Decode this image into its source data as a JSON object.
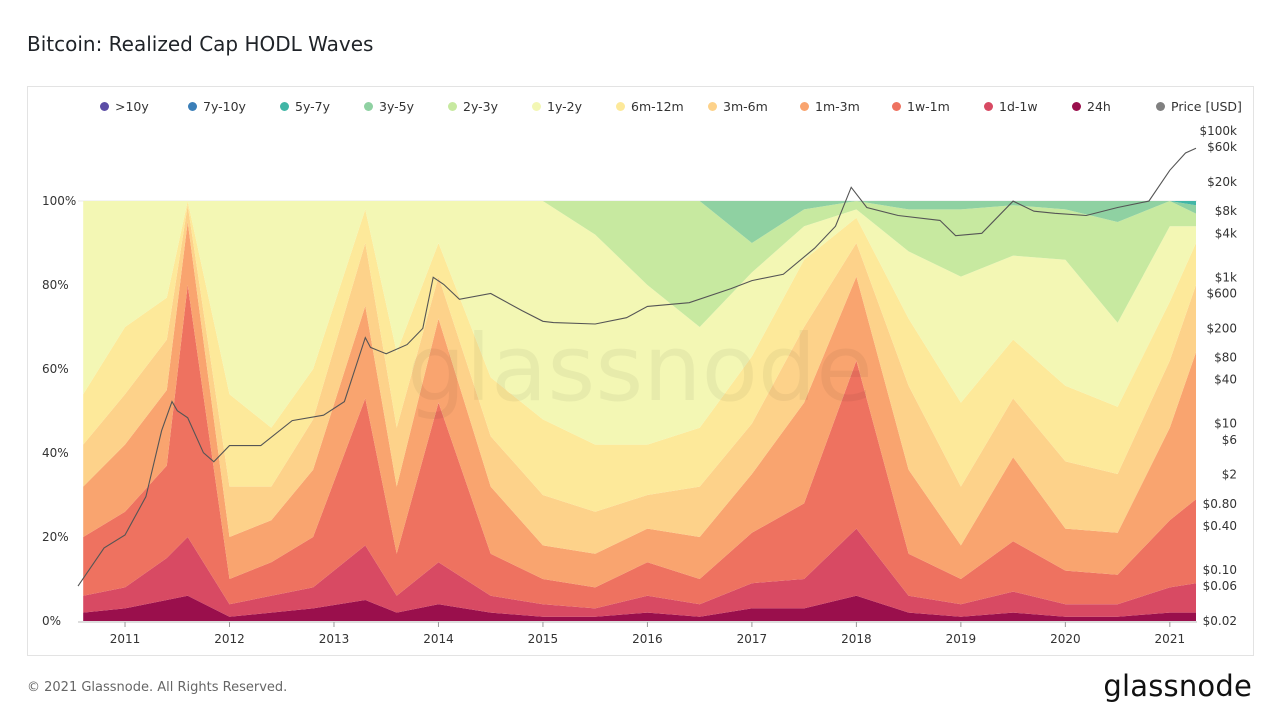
{
  "title": "Bitcoin: Realized Cap HODL Waves",
  "footer": "© 2021 Glassnode. All Rights Reserved.",
  "brand": "glassnode",
  "watermark": "glassnode",
  "legend": [
    {
      "label": ">10y",
      "color": "#5c4ea6"
    },
    {
      "label": "7y-10y",
      "color": "#3b7fb8"
    },
    {
      "label": "5y-7y",
      "color": "#41b6a6"
    },
    {
      "label": "3y-5y",
      "color": "#8fd1a2"
    },
    {
      "label": "2y-3y",
      "color": "#c7e9a0"
    },
    {
      "label": "1y-2y",
      "color": "#f3f7b4"
    },
    {
      "label": "6m-12m",
      "color": "#fde99a"
    },
    {
      "label": "3m-6m",
      "color": "#fdd28a"
    },
    {
      "label": "1m-3m",
      "color": "#f9a46f"
    },
    {
      "label": "1w-1m",
      "color": "#ee7260"
    },
    {
      "label": "1d-1w",
      "color": "#d84a63"
    },
    {
      "label": "24h",
      "color": "#9a0f4c"
    },
    {
      "label": "Price [USD]",
      "color": "#808080"
    }
  ],
  "chart_data": {
    "type": "area",
    "stacked": true,
    "normalized_percent": true,
    "x": [
      2010.6,
      2011.0,
      2011.4,
      2011.6,
      2012.0,
      2012.4,
      2012.8,
      2013.3,
      2013.6,
      2014.0,
      2014.5,
      2015.0,
      2015.5,
      2016.0,
      2016.5,
      2017.0,
      2017.5,
      2018.0,
      2018.5,
      2019.0,
      2019.5,
      2020.0,
      2020.5,
      2021.0,
      2021.25
    ],
    "series": [
      {
        "name": "24h",
        "values": [
          2,
          3,
          5,
          6,
          1,
          2,
          3,
          5,
          2,
          4,
          2,
          1,
          1,
          2,
          1,
          3,
          3,
          6,
          2,
          1,
          2,
          1,
          1,
          2,
          2
        ]
      },
      {
        "name": "1d-1w",
        "values": [
          4,
          5,
          10,
          14,
          3,
          4,
          5,
          13,
          4,
          10,
          4,
          3,
          2,
          4,
          3,
          6,
          7,
          16,
          4,
          3,
          5,
          3,
          3,
          6,
          7
        ]
      },
      {
        "name": "1w-1m",
        "values": [
          14,
          18,
          22,
          60,
          6,
          8,
          12,
          35,
          10,
          38,
          10,
          6,
          5,
          8,
          6,
          12,
          18,
          40,
          10,
          6,
          12,
          8,
          7,
          16,
          20
        ]
      },
      {
        "name": "1m-3m",
        "values": [
          12,
          16,
          18,
          15,
          10,
          10,
          16,
          22,
          16,
          20,
          16,
          8,
          8,
          8,
          10,
          14,
          24,
          20,
          20,
          8,
          20,
          10,
          10,
          22,
          35
        ]
      },
      {
        "name": "3m-6m",
        "values": [
          10,
          12,
          12,
          4,
          12,
          8,
          12,
          15,
          14,
          10,
          12,
          12,
          10,
          8,
          12,
          12,
          18,
          8,
          20,
          14,
          14,
          16,
          14,
          16,
          16
        ]
      },
      {
        "name": "6m-12m",
        "values": [
          12,
          16,
          10,
          1,
          22,
          14,
          12,
          8,
          18,
          8,
          14,
          18,
          16,
          12,
          14,
          16,
          16,
          6,
          16,
          20,
          14,
          18,
          16,
          14,
          10
        ]
      },
      {
        "name": "1y-2y",
        "values": [
          46,
          30,
          23,
          0,
          46,
          54,
          40,
          2,
          36,
          10,
          42,
          52,
          50,
          38,
          24,
          20,
          8,
          2,
          16,
          30,
          20,
          30,
          20,
          18,
          4
        ]
      },
      {
        "name": "2y-3y",
        "values": [
          0,
          0,
          0,
          0,
          0,
          0,
          0,
          0,
          0,
          0,
          0,
          0,
          8,
          20,
          30,
          7,
          4,
          2,
          10,
          16,
          12,
          12,
          24,
          6,
          3
        ]
      },
      {
        "name": "3y-5y",
        "values": [
          0,
          0,
          0,
          0,
          0,
          0,
          0,
          0,
          0,
          0,
          0,
          0,
          0,
          0,
          0,
          10,
          2,
          0,
          2,
          2,
          1,
          2,
          5,
          0,
          2
        ]
      },
      {
        "name": "5y-7y",
        "values": [
          0,
          0,
          0,
          0,
          0,
          0,
          0,
          0,
          0,
          0,
          0,
          0,
          0,
          0,
          0,
          0,
          0,
          0,
          0,
          0,
          0,
          0,
          0,
          0,
          1
        ]
      },
      {
        "name": "7y-10y",
        "values": [
          0,
          0,
          0,
          0,
          0,
          0,
          0,
          0,
          0,
          0,
          0,
          0,
          0,
          0,
          0,
          0,
          0,
          0,
          0,
          0,
          0,
          0,
          0,
          0,
          0
        ]
      },
      {
        "name": ">10y",
        "values": [
          0,
          0,
          0,
          0,
          0,
          0,
          0,
          0,
          0,
          0,
          0,
          0,
          0,
          0,
          0,
          0,
          0,
          0,
          0,
          0,
          0,
          0,
          0,
          0,
          0
        ]
      }
    ],
    "price_series": {
      "name": "Price [USD]",
      "x": [
        2010.55,
        2010.8,
        2011.0,
        2011.2,
        2011.35,
        2011.45,
        2011.5,
        2011.6,
        2011.75,
        2011.85,
        2012.0,
        2012.3,
        2012.6,
        2012.9,
        2013.1,
        2013.3,
        2013.35,
        2013.5,
        2013.7,
        2013.85,
        2013.95,
        2014.05,
        2014.2,
        2014.5,
        2014.8,
        2015.0,
        2015.1,
        2015.5,
        2015.8,
        2016.0,
        2016.4,
        2016.8,
        2017.0,
        2017.3,
        2017.6,
        2017.8,
        2017.95,
        2018.1,
        2018.4,
        2018.8,
        2018.95,
        2019.2,
        2019.5,
        2019.7,
        2019.9,
        2020.2,
        2020.5,
        2020.8,
        2021.0,
        2021.15,
        2021.25
      ],
      "values": [
        0.06,
        0.2,
        0.3,
        1,
        8,
        20,
        15,
        12,
        4,
        3,
        5,
        5,
        11,
        13,
        20,
        150,
        110,
        90,
        120,
        200,
        1000,
        800,
        500,
        600,
        350,
        250,
        240,
        230,
        280,
        400,
        450,
        700,
        900,
        1100,
        2500,
        5000,
        17000,
        9000,
        7000,
        6000,
        3700,
        4000,
        11000,
        8000,
        7500,
        7000,
        9000,
        11000,
        29000,
        50000,
        58000
      ]
    },
    "x_ticks": [
      "2011",
      "2012",
      "2013",
      "2014",
      "2015",
      "2016",
      "2017",
      "2018",
      "2019",
      "2020",
      "2021"
    ],
    "y_left_ticks": [
      "0%",
      "20%",
      "40%",
      "60%",
      "80%",
      "100%"
    ],
    "y_right_ticks": [
      "$0.02",
      "$0.06",
      "$0.10",
      "$0.40",
      "$0.80",
      "$2",
      "$6",
      "$10",
      "$40",
      "$80",
      "$200",
      "$600",
      "$1k",
      "$4k",
      "$8k",
      "$20k",
      "$60k",
      "$100k"
    ],
    "y_right_scale": "log",
    "ylim_left": [
      0,
      100
    ],
    "legend_placement": "top"
  }
}
